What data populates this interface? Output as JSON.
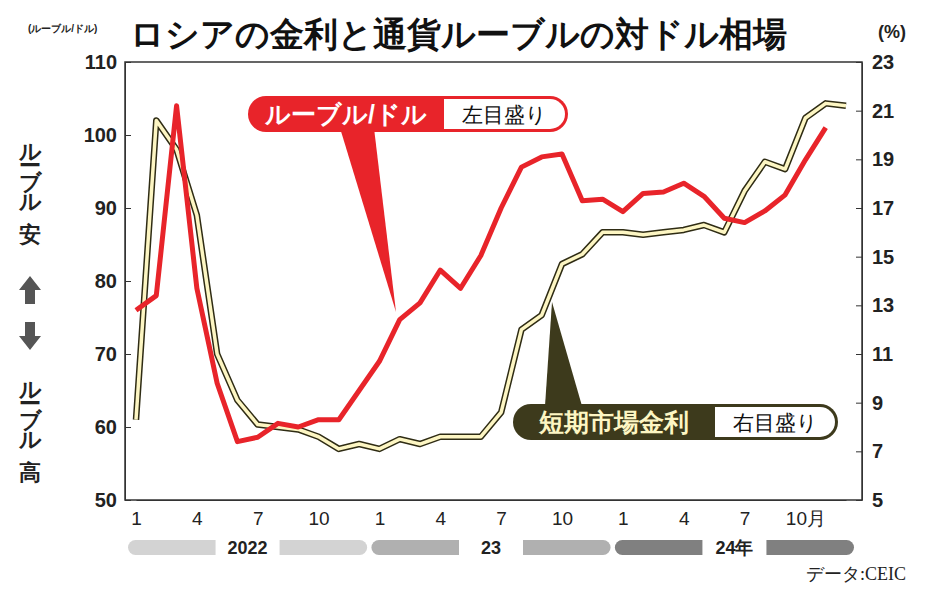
{
  "chart_data": {
    "type": "line",
    "title": "ロシアの金利と通貨ルーブルの対ドル相場",
    "ylabel": "(ルーブル/ドル)",
    "y2label": "(%)",
    "y_annotations": {
      "up": "ルーブル安",
      "down": "ルーブル高"
    },
    "source": "データ:CEIC",
    "year_labels": [
      "2022",
      "23",
      "24年"
    ],
    "categories": [
      "1",
      null,
      null,
      "4",
      null,
      null,
      "7",
      null,
      null,
      "10",
      null,
      null,
      "1",
      null,
      null,
      "4",
      null,
      null,
      "7",
      null,
      null,
      "10",
      null,
      null,
      "1",
      null,
      null,
      "4",
      null,
      null,
      "7",
      null,
      null,
      "10月",
      null,
      null
    ],
    "series": [
      {
        "name": "ルーブル/ドル",
        "scale_label": "左目盛り",
        "color": "#e8242a",
        "axis": "y",
        "values": [
          76,
          78,
          104,
          79,
          66,
          58,
          58.6,
          60.5,
          60,
          61,
          61,
          65,
          69,
          74.7,
          77,
          81.5,
          79,
          83.5,
          90,
          95.6,
          97,
          97.4,
          91,
          91.2,
          89.5,
          92,
          92.2,
          93.4,
          91.6,
          88.6,
          88,
          89.6,
          91.8,
          96.6,
          101,
          null
        ]
      },
      {
        "name": "短期市場金利",
        "scale_label": "右目盛り",
        "color": "#fdf6c3",
        "axis": "y2",
        "values": [
          8.3,
          20.6,
          19.4,
          16.7,
          11,
          9.1,
          8.1,
          8,
          7.9,
          7.6,
          7.1,
          7.3,
          7.1,
          7.5,
          7.3,
          7.6,
          7.6,
          7.6,
          8.6,
          12,
          12.6,
          14.7,
          15.1,
          16,
          16,
          15.9,
          16,
          16.1,
          16.3,
          16,
          17.7,
          18.9,
          18.6,
          20.7,
          21.3,
          21.2
        ]
      }
    ],
    "ylim": [
      50,
      110
    ],
    "yticks": [
      50,
      60,
      70,
      80,
      90,
      100,
      110
    ],
    "y2lim": [
      5,
      23
    ],
    "y2ticks": [
      5,
      7,
      9,
      11,
      13,
      15,
      17,
      19,
      21,
      23
    ],
    "grid": false
  }
}
